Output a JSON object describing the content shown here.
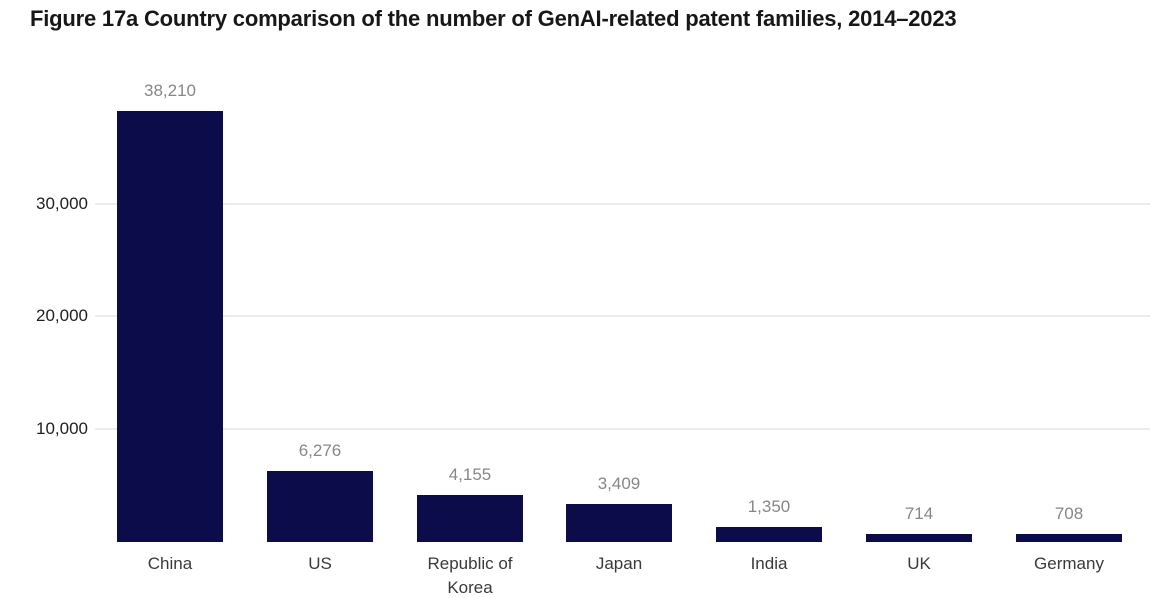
{
  "chart_data": {
    "type": "bar",
    "title": "Figure 17a Country comparison of the number of GenAI-related patent families, 2014–2023",
    "categories": [
      "China",
      "US",
      "Republic of Korea",
      "Japan",
      "India",
      "UK",
      "Germany"
    ],
    "values": [
      38210,
      6276,
      4155,
      3409,
      1350,
      714,
      708
    ],
    "value_labels": [
      "38,210",
      "6,276",
      "4,155",
      "3,409",
      "1,350",
      "714",
      "708"
    ],
    "xlabel": "",
    "ylabel": "",
    "ylim": [
      0,
      40000
    ],
    "y_ticks": [
      {
        "value": 10000,
        "label": "10,000"
      },
      {
        "value": 20000,
        "label": "20,000"
      },
      {
        "value": 30000,
        "label": "30,000"
      }
    ],
    "grid": "horizontal",
    "legend": false,
    "colors": {
      "bar": "#0d0c4a",
      "value_label": "#878787",
      "category_label": "#3a3a3a",
      "tick_label": "#1f1f1f",
      "gridline": "#ececec",
      "title": "#171717",
      "background": "#ffffff"
    }
  }
}
